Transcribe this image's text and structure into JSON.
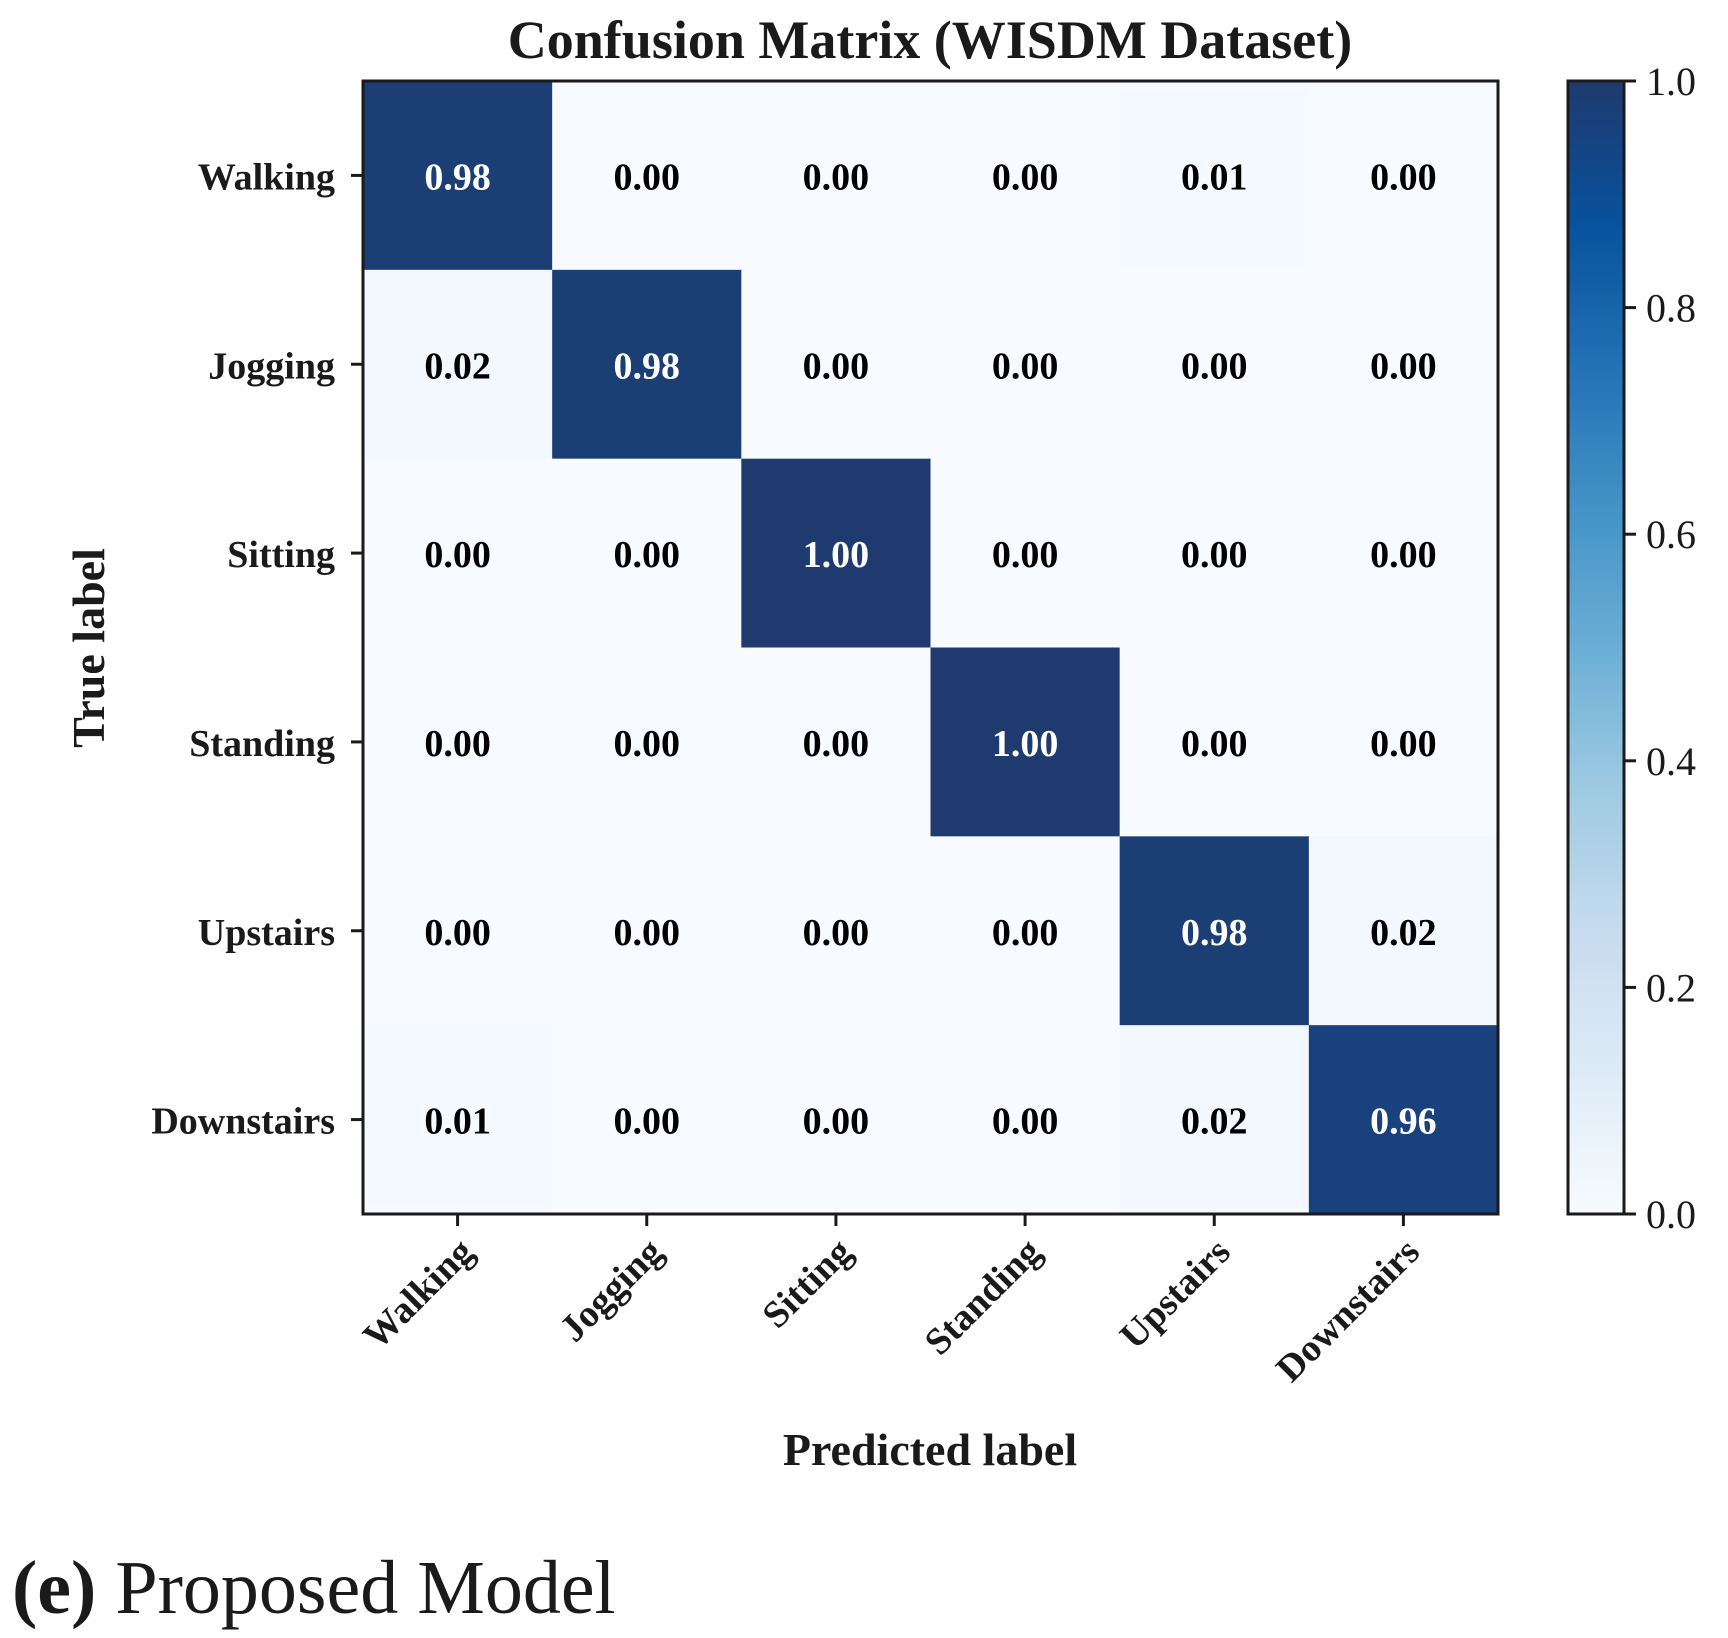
{
  "chart_data": {
    "type": "heatmap",
    "title": "Confusion Matrix (WISDM Dataset)",
    "xlabel": "Predicted label",
    "ylabel": "True label",
    "x_categories": [
      "Walking",
      "Jogging",
      "Sitting",
      "Standing",
      "Upstairs",
      "Downstairs"
    ],
    "y_categories": [
      "Walking",
      "Jogging",
      "Sitting",
      "Standing",
      "Upstairs",
      "Downstairs"
    ],
    "values": [
      [
        0.98,
        0.0,
        0.0,
        0.0,
        0.01,
        0.0
      ],
      [
        0.02,
        0.98,
        0.0,
        0.0,
        0.0,
        0.0
      ],
      [
        0.0,
        0.0,
        1.0,
        0.0,
        0.0,
        0.0
      ],
      [
        0.0,
        0.0,
        0.0,
        1.0,
        0.0,
        0.0
      ],
      [
        0.0,
        0.0,
        0.0,
        0.0,
        0.98,
        0.02
      ],
      [
        0.01,
        0.0,
        0.0,
        0.0,
        0.02,
        0.96
      ]
    ],
    "value_format": "2 decimals",
    "colorbar": {
      "range": [
        0.0,
        1.0
      ],
      "ticks": [
        "0.0",
        "0.2",
        "0.4",
        "0.6",
        "0.8",
        "1.0"
      ],
      "colormap": "Blues",
      "stops": [
        "#f7fbff",
        "#deebf7",
        "#c6dbef",
        "#9ecae1",
        "#6baed6",
        "#4292c6",
        "#2171b5",
        "#08519c",
        "#1f3a6e"
      ]
    },
    "text_color_dark": "#000000",
    "text_color_light": "#ffffff",
    "grid": false
  },
  "caption": {
    "letter": "(e)",
    "text": " Proposed Model"
  }
}
